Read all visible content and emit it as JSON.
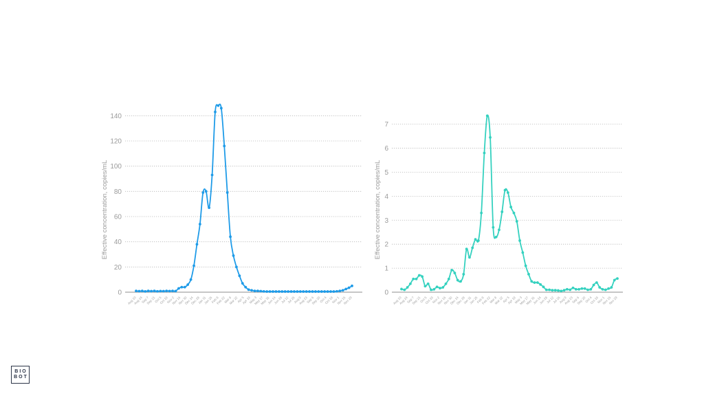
{
  "chart_data": [
    {
      "type": "line",
      "ylabel": "Effective concentration, copies/mL",
      "ylim": [
        0,
        150
      ],
      "yticks": [
        0,
        20,
        40,
        60,
        80,
        100,
        120,
        140
      ],
      "grid": true,
      "color": "#1e9be8",
      "x_labels": [
        "Aug 10",
        "Aug 24",
        "Sep 7",
        "Sep 21",
        "Oct 5",
        "Oct 19",
        "Nov 2",
        "Nov 16",
        "Nov 30",
        "Dec 14",
        "Dec 28",
        "Jan 11",
        "Jan 25",
        "Feb 8",
        "Feb 22",
        "Mar 8",
        "Mar 22",
        "Apr 5",
        "Apr 19",
        "May 3",
        "May 17",
        "May 31",
        "Jun 14",
        "Jun 28",
        "Jul 12",
        "Jul 26",
        "Aug 9",
        "Aug 23",
        "Sep 6",
        "Sep 20",
        "Oct 4",
        "Oct 18",
        "Nov 1",
        "Nov 15",
        "Nov 29"
      ],
      "series": [
        {
          "values": [
            1,
            0.8,
            1,
            0.6,
            1,
            0.8,
            1,
            0.7,
            0.9,
            0.8,
            1,
            0.9,
            1,
            0.9,
            3,
            4,
            4,
            6,
            10,
            21,
            38,
            54,
            79,
            80,
            67,
            93,
            143,
            148,
            146,
            116,
            79,
            44,
            29,
            20,
            13,
            7,
            4,
            2,
            1.5,
            1,
            1,
            0.8,
            0.6,
            0.5,
            0.5,
            0.5,
            0.5,
            0.5,
            0.5,
            0.5,
            0.5,
            0.5,
            0.5,
            0.5,
            0.5,
            0.5,
            0.5,
            0.5,
            0.5,
            0.5,
            0.5,
            0.5,
            0.5,
            0.5,
            0.5,
            0.5,
            0.7,
            1,
            1.5,
            2.5,
            3.5,
            5
          ]
        }
      ]
    },
    {
      "type": "line",
      "ylabel": "Effective concentration, copies/mL",
      "ylim": [
        0,
        7.4
      ],
      "yticks": [
        0,
        1,
        2,
        3,
        4,
        5,
        6,
        7
      ],
      "grid": true,
      "color": "#34d1bf",
      "x_labels": [
        "Aug 10",
        "Aug 24",
        "Sep 7",
        "Sep 21",
        "Oct 5",
        "Oct 19",
        "Nov 2",
        "Nov 16",
        "Nov 30",
        "Dec 14",
        "Dec 28",
        "Jan 11",
        "Jan 25",
        "Feb 8",
        "Feb 22",
        "Mar 8",
        "Mar 22",
        "Apr 5",
        "Apr 19",
        "May 3",
        "May 17",
        "May 31",
        "Jun 14",
        "Jun 28",
        "Jul 12",
        "Jul 26",
        "Aug 9",
        "Aug 23",
        "Sep 6",
        "Sep 20",
        "Oct 4",
        "Oct 18",
        "Nov 1",
        "Nov 15",
        "Nov 29"
      ],
      "series": [
        {
          "values": [
            0.13,
            0.1,
            0.2,
            0.35,
            0.55,
            0.55,
            0.7,
            0.65,
            0.25,
            0.35,
            0.1,
            0.12,
            0.22,
            0.17,
            0.2,
            0.35,
            0.55,
            0.92,
            0.8,
            0.5,
            0.45,
            0.75,
            1.8,
            1.45,
            1.85,
            2.2,
            2.15,
            3.3,
            5.8,
            7.35,
            6.45,
            2.7,
            2.3,
            2.6,
            3.35,
            4.25,
            4.15,
            3.55,
            3.3,
            2.95,
            2.15,
            1.65,
            1.1,
            0.75,
            0.45,
            0.4,
            0.4,
            0.32,
            0.22,
            0.1,
            0.1,
            0.08,
            0.08,
            0.07,
            0.05,
            0.08,
            0.12,
            0.1,
            0.18,
            0.12,
            0.12,
            0.15,
            0.15,
            0.1,
            0.12,
            0.3,
            0.4,
            0.2,
            0.12,
            0.1,
            0.15,
            0.2,
            0.5,
            0.57
          ]
        }
      ]
    }
  ],
  "logo": {
    "line1": "BIO",
    "line2": "BOT"
  }
}
